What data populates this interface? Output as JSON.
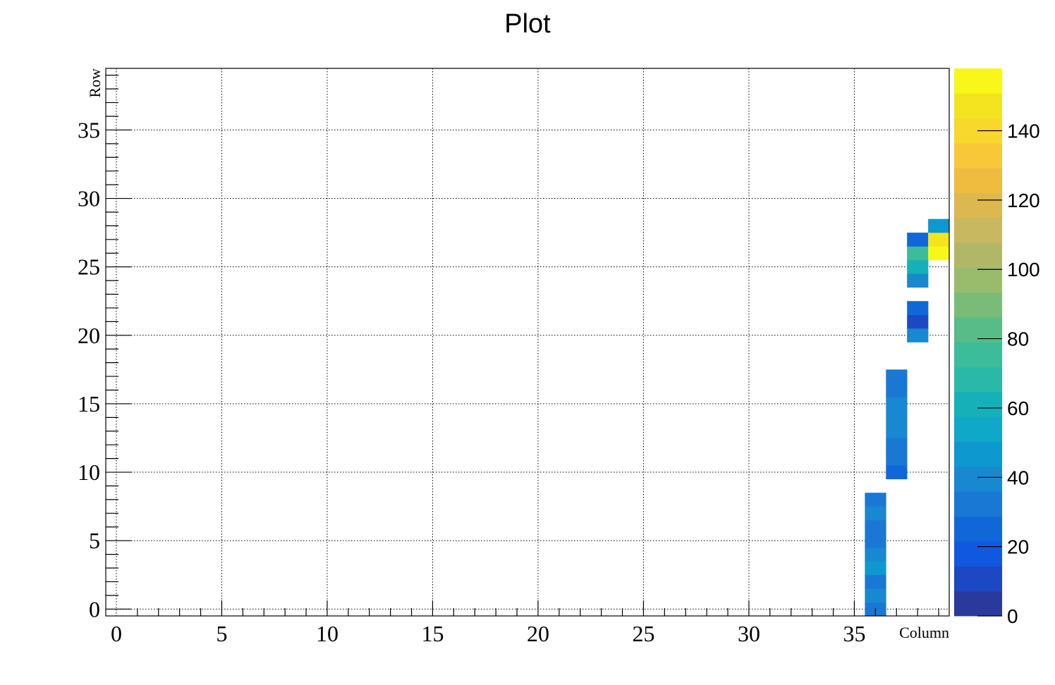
{
  "chart_data": {
    "type": "heatmap",
    "title": "Plot",
    "xlabel": "Column",
    "ylabel": "Row",
    "xlim": [
      -0.5,
      39.5
    ],
    "ylim": [
      -0.5,
      39.5
    ],
    "xticks": [
      0,
      5,
      10,
      15,
      20,
      25,
      30,
      35
    ],
    "yticks": [
      0,
      5,
      10,
      15,
      20,
      25,
      30,
      35
    ],
    "zlim": [
      0,
      158
    ],
    "zticks": [
      0,
      20,
      40,
      60,
      80,
      100,
      120,
      140
    ],
    "grid": true,
    "palette": [
      "#2a3a9c",
      "#1c48c4",
      "#1158e0",
      "#1068d8",
      "#1878d4",
      "#1888d0",
      "#0e98d0",
      "#10a8c8",
      "#16b0b8",
      "#2ab8a8",
      "#3cbc98",
      "#58bc88",
      "#78bc78",
      "#98bc6c",
      "#b0b868",
      "#c8b860",
      "#ddb850",
      "#f0bc40",
      "#f8c838",
      "#f8d82c",
      "#f4e420",
      "#f8f818"
    ],
    "cells": [
      {
        "x": 36,
        "y": 0,
        "value": 34
      },
      {
        "x": 36,
        "y": 1,
        "value": 36
      },
      {
        "x": 36,
        "y": 2,
        "value": 30
      },
      {
        "x": 36,
        "y": 3,
        "value": 50
      },
      {
        "x": 36,
        "y": 4,
        "value": 36
      },
      {
        "x": 36,
        "y": 5,
        "value": 30
      },
      {
        "x": 36,
        "y": 6,
        "value": 30
      },
      {
        "x": 36,
        "y": 7,
        "value": 42
      },
      {
        "x": 36,
        "y": 8,
        "value": 30
      },
      {
        "x": 37,
        "y": 10,
        "value": 28
      },
      {
        "x": 37,
        "y": 11,
        "value": 30
      },
      {
        "x": 37,
        "y": 12,
        "value": 30
      },
      {
        "x": 37,
        "y": 13,
        "value": 42
      },
      {
        "x": 37,
        "y": 14,
        "value": 38
      },
      {
        "x": 37,
        "y": 15,
        "value": 36
      },
      {
        "x": 37,
        "y": 16,
        "value": 30
      },
      {
        "x": 37,
        "y": 17,
        "value": 30
      },
      {
        "x": 38,
        "y": 20,
        "value": 36
      },
      {
        "x": 38,
        "y": 21,
        "value": 14
      },
      {
        "x": 38,
        "y": 22,
        "value": 24
      },
      {
        "x": 38,
        "y": 24,
        "value": 36
      },
      {
        "x": 38,
        "y": 25,
        "value": 62
      },
      {
        "x": 38,
        "y": 26,
        "value": 74
      },
      {
        "x": 38,
        "y": 27,
        "value": 24
      },
      {
        "x": 39,
        "y": 26,
        "value": 158
      },
      {
        "x": 39,
        "y": 27,
        "value": 150
      },
      {
        "x": 39,
        "y": 28,
        "value": 48
      }
    ]
  }
}
